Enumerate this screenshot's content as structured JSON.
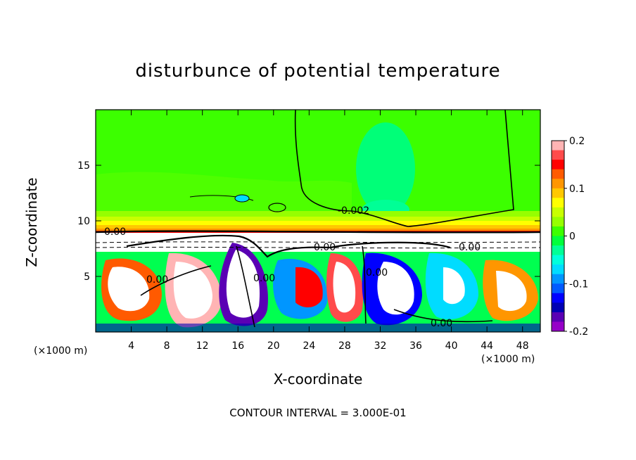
{
  "chart_data": {
    "type": "heatmap",
    "title": "disturbunce of potential temperature",
    "xlabel": "X-coordinate",
    "ylabel": "Z-coordinate",
    "x_unit": "(×1000 m)",
    "y_unit": "(×1000 m)",
    "xlim": [
      0,
      50
    ],
    "ylim": [
      0,
      20
    ],
    "x_ticks": [
      4,
      8,
      12,
      16,
      20,
      24,
      28,
      32,
      36,
      40,
      44,
      48
    ],
    "y_ticks": [
      5,
      10,
      15
    ],
    "colorbar": {
      "range": [
        -0.2,
        0.2
      ],
      "tick_labels": [
        "0.2",
        "0.1",
        "0",
        "-0.1",
        "-0.2"
      ],
      "tick_values": [
        0.2,
        0.1,
        0,
        -0.1,
        -0.2
      ],
      "colors": [
        "#ffb4b4",
        "#ff4b4b",
        "#ff0000",
        "#ff5a00",
        "#ff9600",
        "#ffc800",
        "#ffff00",
        "#c8ff00",
        "#96ff00",
        "#3cff00",
        "#00ff3c",
        "#00ff96",
        "#00ffdc",
        "#00dcff",
        "#0096ff",
        "#005aff",
        "#0000ff",
        "#0000b4",
        "#5a00b4",
        "#9600c8"
      ]
    },
    "contour_labels": [
      "0.00",
      "-0.002",
      "0.00",
      "0.00",
      "0.00",
      "0.00",
      "0.00",
      "0.00"
    ],
    "contour_interval": "CONTOUR INTERVAL = 3.000E-01"
  }
}
